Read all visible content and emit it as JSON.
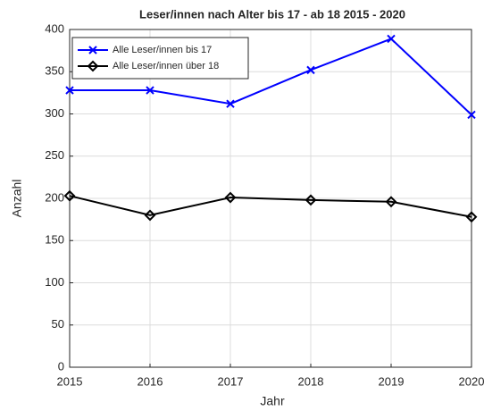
{
  "chart_data": {
    "type": "line",
    "title": "Leser/innen nach Alter bis 17 - ab 18 2015 - 2020",
    "x_label": "Jahr",
    "y_label": "Anzahl",
    "x": [
      2015,
      2016,
      2017,
      2018,
      2019,
      2020
    ],
    "series": [
      {
        "name": "Alle Leser/innen bis 17",
        "color": "#0000ff",
        "marker": "x",
        "values": [
          328,
          328,
          312,
          352,
          389,
          299
        ]
      },
      {
        "name": "Alle Leser/innen über 18",
        "color": "#000000",
        "marker": "diamond",
        "values": [
          203,
          180,
          201,
          198,
          196,
          178
        ]
      }
    ],
    "xlim": [
      2015,
      2020
    ],
    "xticks": [
      2015,
      2016,
      2017,
      2018,
      2019,
      2020
    ],
    "ylim": [
      0,
      400
    ],
    "yticks": [
      0,
      50,
      100,
      150,
      200,
      250,
      300,
      350,
      400
    ],
    "grid": true,
    "legend": "upper left"
  }
}
